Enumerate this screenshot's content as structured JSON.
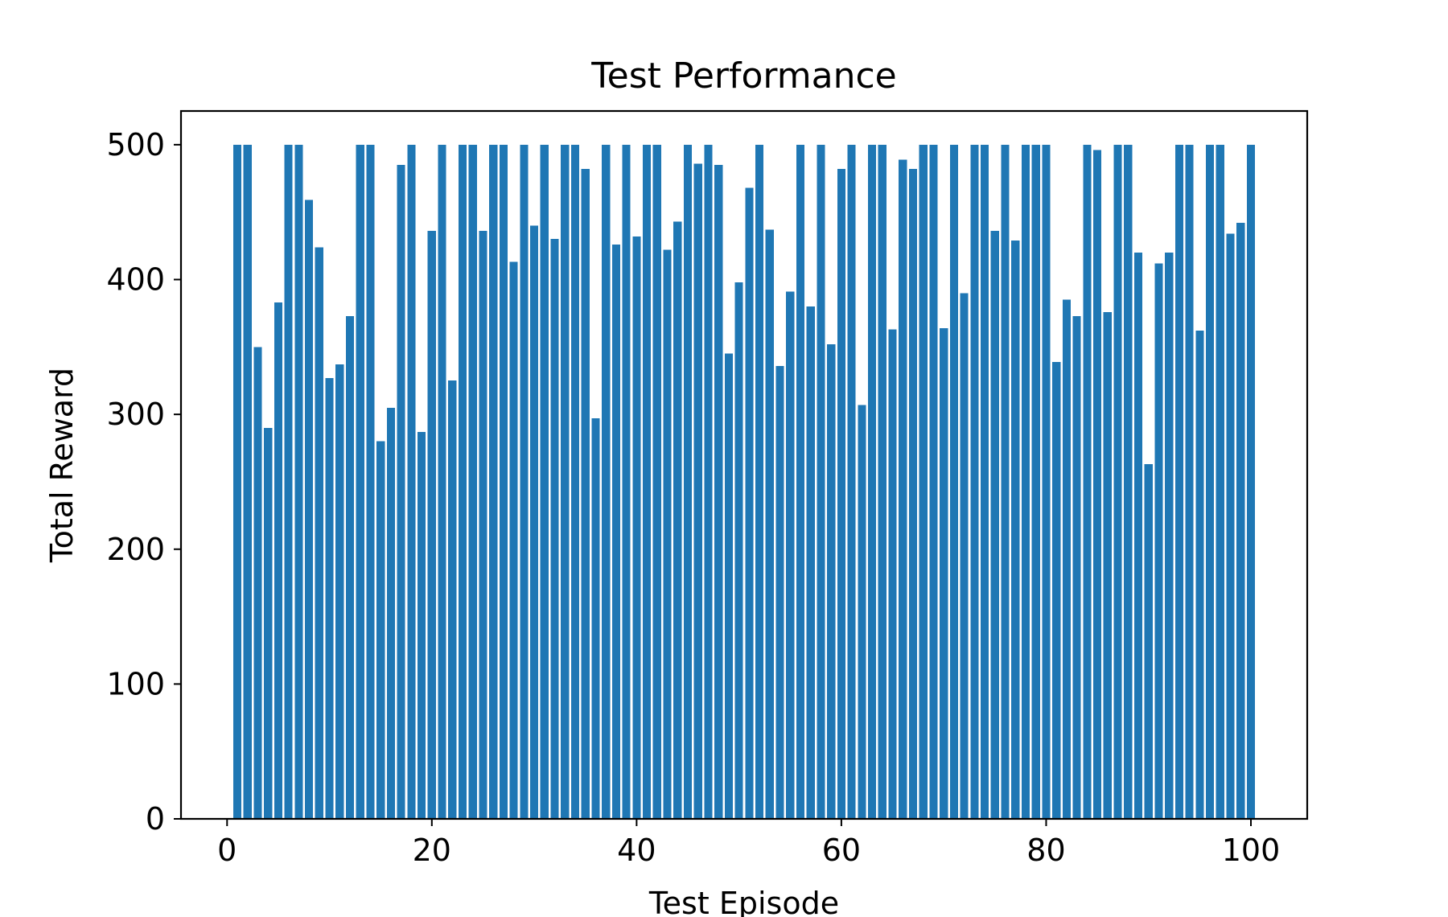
{
  "chart_data": {
    "type": "bar",
    "title": "Test Performance",
    "xlabel": "Test Episode",
    "ylabel": "Total Reward",
    "xlim": [
      -4.5,
      105.5
    ],
    "ylim": [
      0,
      525
    ],
    "xticks": [
      0,
      20,
      40,
      60,
      80,
      100
    ],
    "yticks": [
      0,
      100,
      200,
      300,
      400,
      500
    ],
    "bar_color": "#1f77b4",
    "grid": false,
    "x": [
      1,
      2,
      3,
      4,
      5,
      6,
      7,
      8,
      9,
      10,
      11,
      12,
      13,
      14,
      15,
      16,
      17,
      18,
      19,
      20,
      21,
      22,
      23,
      24,
      25,
      26,
      27,
      28,
      29,
      30,
      31,
      32,
      33,
      34,
      35,
      36,
      37,
      38,
      39,
      40,
      41,
      42,
      43,
      44,
      45,
      46,
      47,
      48,
      49,
      50,
      51,
      52,
      53,
      54,
      55,
      56,
      57,
      58,
      59,
      60,
      61,
      62,
      63,
      64,
      65,
      66,
      67,
      68,
      69,
      70,
      71,
      72,
      73,
      74,
      75,
      76,
      77,
      78,
      79,
      80,
      81,
      82,
      83,
      84,
      85,
      86,
      87,
      88,
      89,
      90,
      91,
      92,
      93,
      94,
      95,
      96,
      97,
      98,
      99,
      100
    ],
    "values": [
      500,
      500,
      350,
      290,
      383,
      500,
      500,
      459,
      424,
      327,
      337,
      373,
      500,
      500,
      280,
      305,
      485,
      500,
      287,
      436,
      500,
      325,
      500,
      500,
      436,
      500,
      500,
      413,
      500,
      440,
      500,
      430,
      500,
      500,
      482,
      297,
      500,
      426,
      500,
      432,
      500,
      500,
      422,
      443,
      500,
      486,
      500,
      485,
      345,
      398,
      468,
      500,
      437,
      336,
      391,
      500,
      380,
      500,
      352,
      482,
      500,
      307,
      500,
      500,
      363,
      489,
      482,
      500,
      500,
      364,
      500,
      390,
      500,
      500,
      436,
      500,
      429,
      500,
      500,
      500,
      339,
      385,
      373,
      500,
      496,
      376,
      500,
      500,
      420,
      263,
      412,
      420,
      500,
      500,
      362,
      500,
      500,
      434,
      442,
      500
    ]
  }
}
